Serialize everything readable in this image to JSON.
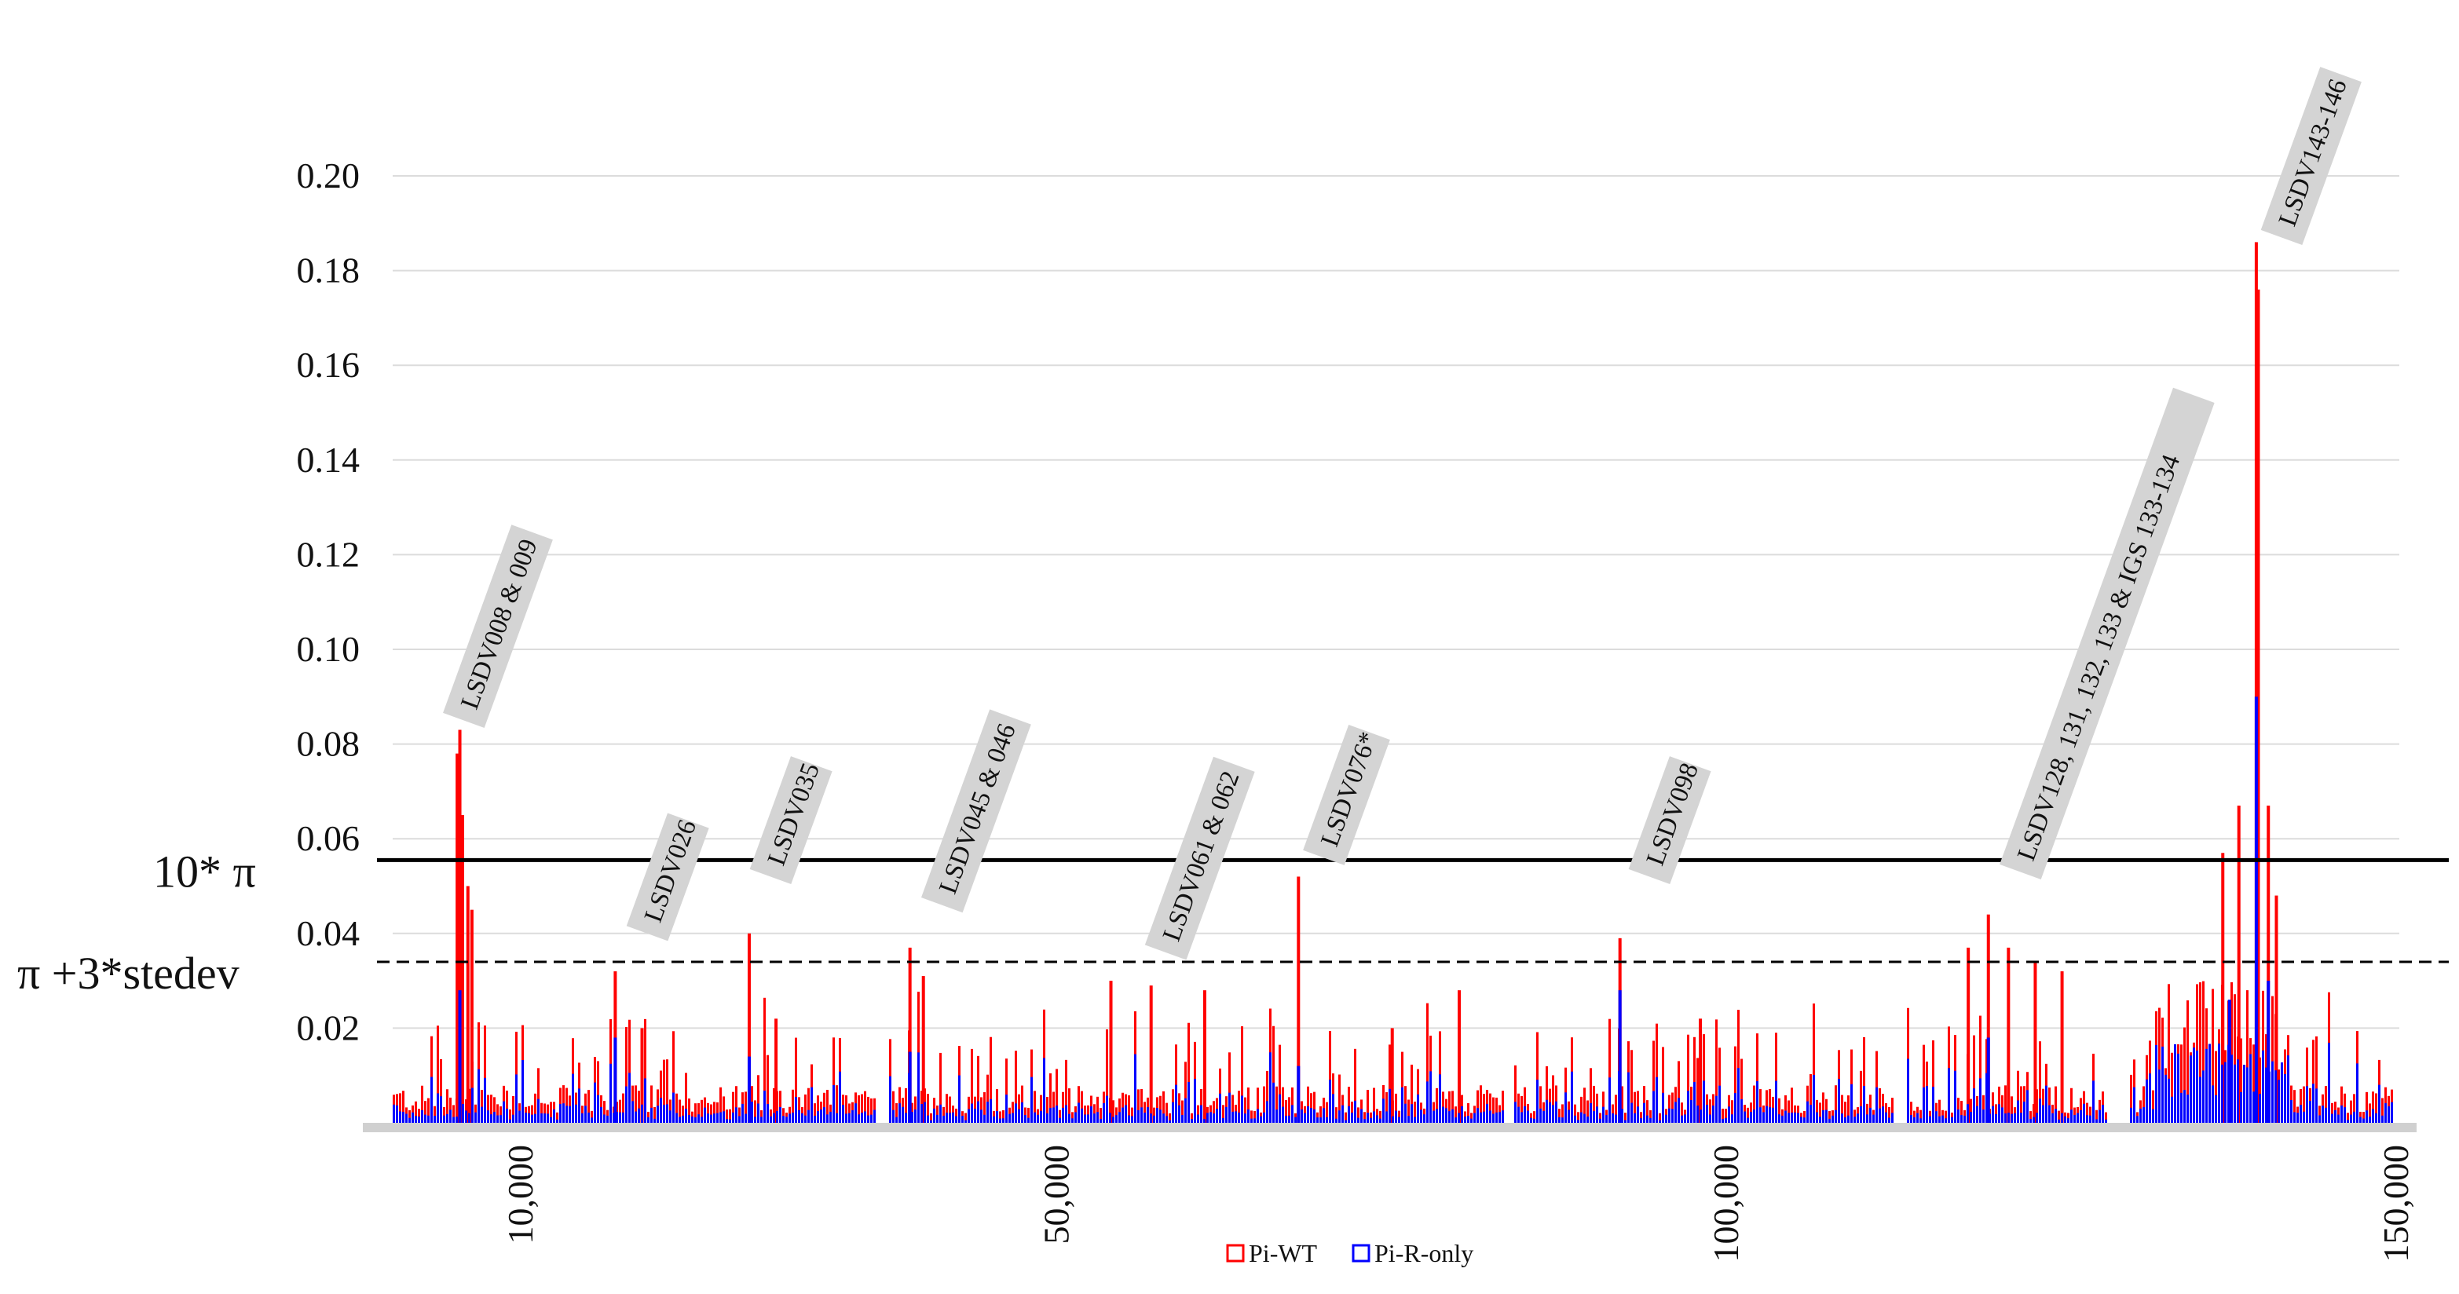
{
  "chart_data": {
    "type": "bar",
    "title": "",
    "xlabel": "",
    "ylabel": "",
    "xlim": [
      0,
      150000
    ],
    "ylim": [
      0,
      0.2
    ],
    "y_ticks": [
      "0.20",
      "0.18",
      "0.16",
      "0.14",
      "0.12",
      "0.10",
      "0.08",
      "0.06",
      "0.04",
      "0.02"
    ],
    "y_tick_values": [
      0.2,
      0.18,
      0.16,
      0.14,
      0.12,
      0.1,
      0.08,
      0.06,
      0.04,
      0.02
    ],
    "x_ticks": [
      "10,000",
      "50,000",
      "100,000",
      "150,000"
    ],
    "x_tick_values": [
      10000,
      50000,
      100000,
      150000
    ],
    "grid": "horizontal",
    "legend_placement": "bottom-center",
    "series": [
      {
        "name": "Pi-WT",
        "color": "#ff0000",
        "peaks": [
          {
            "x": 5400,
            "y": 0.083
          },
          {
            "x": 5200,
            "y": 0.078
          },
          {
            "x": 5600,
            "y": 0.065
          },
          {
            "x": 6000,
            "y": 0.05
          },
          {
            "x": 6300,
            "y": 0.045
          },
          {
            "x": 17000,
            "y": 0.032
          },
          {
            "x": 19000,
            "y": 0.02
          },
          {
            "x": 27000,
            "y": 0.04
          },
          {
            "x": 29000,
            "y": 0.022
          },
          {
            "x": 39000,
            "y": 0.037
          },
          {
            "x": 40000,
            "y": 0.031
          },
          {
            "x": 54000,
            "y": 0.03
          },
          {
            "x": 57000,
            "y": 0.029
          },
          {
            "x": 61000,
            "y": 0.028
          },
          {
            "x": 68000,
            "y": 0.052
          },
          {
            "x": 75000,
            "y": 0.02
          },
          {
            "x": 80000,
            "y": 0.028
          },
          {
            "x": 92000,
            "y": 0.039
          },
          {
            "x": 98000,
            "y": 0.022
          },
          {
            "x": 118000,
            "y": 0.037
          },
          {
            "x": 119500,
            "y": 0.044
          },
          {
            "x": 121000,
            "y": 0.037
          },
          {
            "x": 123000,
            "y": 0.034
          },
          {
            "x": 125000,
            "y": 0.032
          },
          {
            "x": 137000,
            "y": 0.057
          },
          {
            "x": 138200,
            "y": 0.067
          },
          {
            "x": 139500,
            "y": 0.186
          },
          {
            "x": 139650,
            "y": 0.176
          },
          {
            "x": 139550,
            "y": 0.138
          },
          {
            "x": 140400,
            "y": 0.067
          },
          {
            "x": 141000,
            "y": 0.048
          }
        ]
      },
      {
        "name": "Pi-R-only",
        "color": "#0000ff",
        "peaks": [
          {
            "x": 5400,
            "y": 0.028
          },
          {
            "x": 17000,
            "y": 0.018
          },
          {
            "x": 27000,
            "y": 0.014
          },
          {
            "x": 39000,
            "y": 0.015
          },
          {
            "x": 68000,
            "y": 0.012
          },
          {
            "x": 92000,
            "y": 0.028
          },
          {
            "x": 119500,
            "y": 0.018
          },
          {
            "x": 137500,
            "y": 0.026
          },
          {
            "x": 139500,
            "y": 0.09
          },
          {
            "x": 140400,
            "y": 0.03
          }
        ]
      }
    ],
    "reference_lines": [
      {
        "name": "mean_x10",
        "label": "10* π",
        "y": 0.0555,
        "style": "solid"
      },
      {
        "name": "mean_plus_3sd",
        "label": "π  +3*stedev",
        "y": 0.034,
        "style": "dashed"
      }
    ],
    "annotations": [
      {
        "text": "LSDV008 & 009",
        "x": 5800,
        "y": 0.085
      },
      {
        "text": "LSDV026",
        "x": 19500,
        "y": 0.04
      },
      {
        "text": "LSDV035",
        "x": 28700,
        "y": 0.052
      },
      {
        "text": "LSDV045 & 046",
        "x": 41500,
        "y": 0.046
      },
      {
        "text": "LSDV061 & 062",
        "x": 58200,
        "y": 0.036
      },
      {
        "text": "LSDV076*",
        "x": 70000,
        "y": 0.056
      },
      {
        "text": "LSDV098",
        "x": 94300,
        "y": 0.052
      },
      {
        "text": "LSDV128, 131, 132, 133 & IGS 133-134",
        "x": 122000,
        "y": 0.053
      },
      {
        "text": "LSDV143-146",
        "x": 141500,
        "y": 0.187
      }
    ]
  },
  "legend": {
    "items": [
      {
        "label": "Pi-WT",
        "color": "#ff0000"
      },
      {
        "label": "Pi-R-only",
        "color": "#0000ff"
      }
    ]
  }
}
